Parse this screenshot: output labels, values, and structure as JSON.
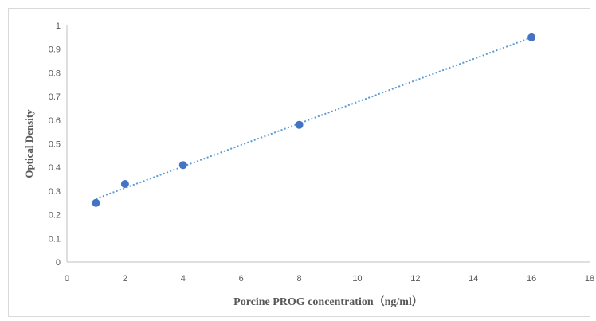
{
  "chart_data": {
    "type": "scatter",
    "title": "",
    "xlabel": "Porcine PROG concentration（ng/ml）",
    "ylabel": "Optical Density",
    "xlim": [
      0,
      18
    ],
    "ylim": [
      0,
      1
    ],
    "xticks": [
      0,
      2,
      4,
      6,
      8,
      10,
      12,
      14,
      16,
      18
    ],
    "yticks": [
      0,
      0.1,
      0.2,
      0.3,
      0.4,
      0.5,
      0.6,
      0.7,
      0.8,
      0.9,
      1
    ],
    "grid": false,
    "legend": "none",
    "trendline": {
      "style": "dotted",
      "x_start": 1,
      "x_end": 16
    },
    "series": [
      {
        "color": "#4472c4",
        "points": [
          {
            "x": 1,
            "y": 0.25
          },
          {
            "x": 2,
            "y": 0.33
          },
          {
            "x": 4,
            "y": 0.41
          },
          {
            "x": 8,
            "y": 0.58
          },
          {
            "x": 16,
            "y": 0.95
          }
        ]
      }
    ],
    "colors": {
      "axis": "#bfbfbf",
      "text": "#595959",
      "marker": "#4472c4",
      "trend": "#5b9bd5"
    }
  }
}
